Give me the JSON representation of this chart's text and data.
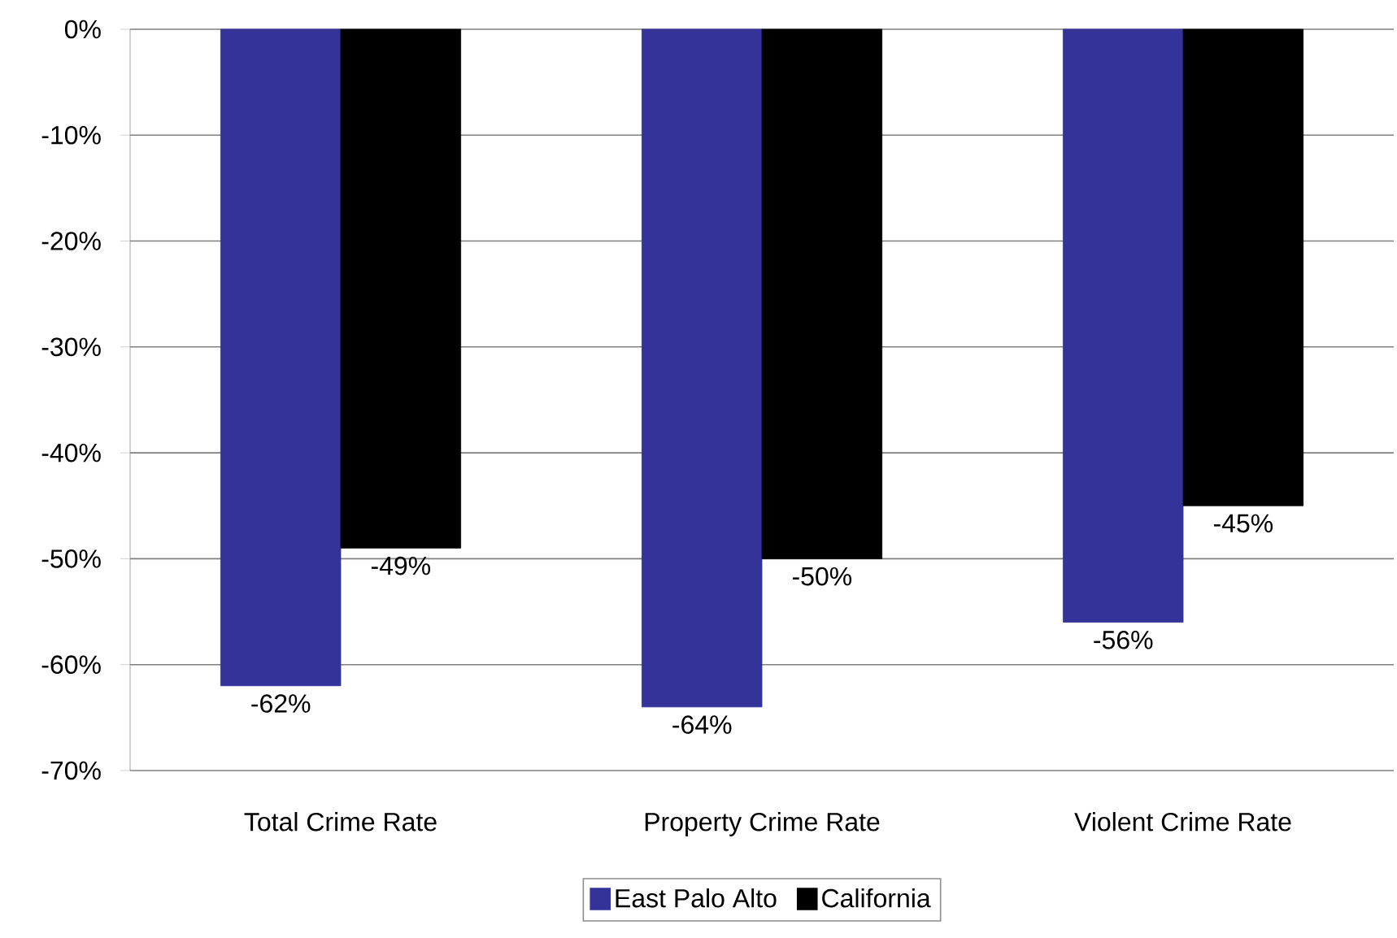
{
  "chart_data": {
    "type": "bar",
    "categories": [
      "Total Crime Rate",
      "Property Crime Rate",
      "Violent Crime Rate"
    ],
    "series": [
      {
        "name": "East Palo Alto",
        "color": "#333399",
        "values": [
          -62,
          -64,
          -56
        ],
        "value_labels": [
          "-62%",
          "-64%",
          "-56%"
        ]
      },
      {
        "name": "California",
        "color": "#000000",
        "values": [
          -49,
          -50,
          -45
        ],
        "value_labels": [
          "-49%",
          "-50%",
          "-45%"
        ]
      }
    ],
    "ylim": [
      -70,
      0
    ],
    "yticks": [
      {
        "value": 0,
        "label": "0%"
      },
      {
        "value": -10,
        "label": "-10%"
      },
      {
        "value": -20,
        "label": "-20%"
      },
      {
        "value": -30,
        "label": "-30%"
      },
      {
        "value": -40,
        "label": "-40%"
      },
      {
        "value": -50,
        "label": "-50%"
      },
      {
        "value": -60,
        "label": "-60%"
      },
      {
        "value": -70,
        "label": "-70%"
      }
    ],
    "grid": "y",
    "legend": "bottom"
  }
}
